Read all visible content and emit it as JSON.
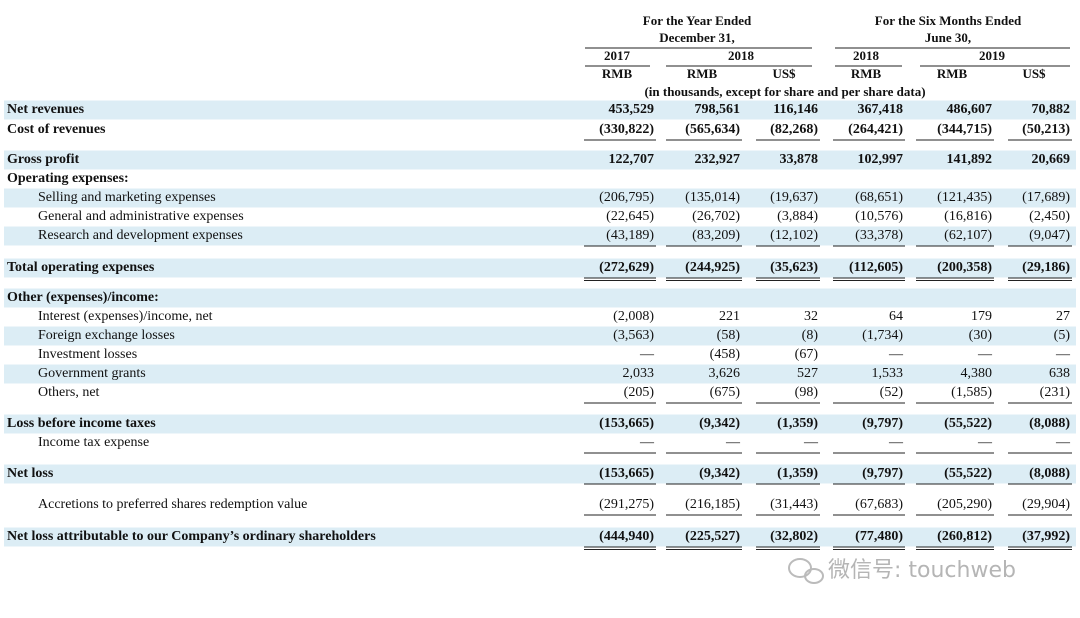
{
  "header": {
    "year_group": [
      "For the Year Ended",
      "December 31,"
    ],
    "six_group": [
      "For the Six Months Ended",
      "June 30,"
    ],
    "years": [
      "2017",
      "2018",
      "2018",
      "2019"
    ],
    "currencies": [
      "RMB",
      "RMB",
      "US$",
      "RMB",
      "RMB",
      "US$"
    ],
    "note": "(in thousands, except for share and per share data)"
  },
  "table": {
    "rows": [
      {
        "label": "Net revenues",
        "values": [
          "453,529",
          "798,561",
          "116,146",
          "367,418",
          "486,607",
          "70,882"
        ]
      },
      {
        "label": "Cost of revenues",
        "values": [
          "(330,822)",
          "(565,634)",
          "(82,268)",
          "(264,421)",
          "(344,715)",
          "(50,213)"
        ]
      },
      {
        "label": "Gross profit",
        "values": [
          "122,707",
          "232,927",
          "33,878",
          "102,997",
          "141,892",
          "20,669"
        ]
      },
      {
        "label": "Operating expenses:"
      },
      {
        "label": "Selling and marketing expenses",
        "values": [
          "(206,795)",
          "(135,014)",
          "(19,637)",
          "(68,651)",
          "(121,435)",
          "(17,689)"
        ]
      },
      {
        "label": "General and administrative expenses",
        "values": [
          "(22,645)",
          "(26,702)",
          "(3,884)",
          "(10,576)",
          "(16,816)",
          "(2,450)"
        ]
      },
      {
        "label": "Research and development expenses",
        "values": [
          "(43,189)",
          "(83,209)",
          "(12,102)",
          "(33,378)",
          "(62,107)",
          "(9,047)"
        ]
      },
      {
        "label": "Total operating expenses",
        "values": [
          "(272,629)",
          "(244,925)",
          "(35,623)",
          "(112,605)",
          "(200,358)",
          "(29,186)"
        ]
      },
      {
        "label": "Other (expenses)/income:"
      },
      {
        "label": "Interest (expenses)/income, net",
        "values": [
          "(2,008)",
          "221",
          "32",
          "64",
          "179",
          "27"
        ]
      },
      {
        "label": "Foreign exchange losses",
        "values": [
          "(3,563)",
          "(58)",
          "(8)",
          "(1,734)",
          "(30)",
          "(5)"
        ]
      },
      {
        "label": "Investment losses",
        "values": [
          "—",
          "(458)",
          "(67)",
          "—",
          "—",
          "—"
        ]
      },
      {
        "label": "Government grants",
        "values": [
          "2,033",
          "3,626",
          "527",
          "1,533",
          "4,380",
          "638"
        ]
      },
      {
        "label": "Others, net",
        "values": [
          "(205)",
          "(675)",
          "(98)",
          "(52)",
          "(1,585)",
          "(231)"
        ]
      },
      {
        "label": "Loss before income taxes",
        "values": [
          "(153,665)",
          "(9,342)",
          "(1,359)",
          "(9,797)",
          "(55,522)",
          "(8,088)"
        ]
      },
      {
        "label": "Income tax expense",
        "values": [
          "—",
          "—",
          "—",
          "—",
          "—",
          "—"
        ]
      },
      {
        "label": "Net loss",
        "values": [
          "(153,665)",
          "(9,342)",
          "(1,359)",
          "(9,797)",
          "(55,522)",
          "(8,088)"
        ]
      },
      {
        "label": "Accretions to preferred shares redemption value",
        "values": [
          "(291,275)",
          "(216,185)",
          "(31,443)",
          "(67,683)",
          "(205,290)",
          "(29,904)"
        ]
      },
      {
        "label": "Net loss attributable to our Company’s ordinary shareholders",
        "values": [
          "(444,940)",
          "(225,527)",
          "(32,802)",
          "(77,480)",
          "(260,812)",
          "(37,992)"
        ]
      }
    ]
  },
  "watermark": "微信号: touchweb"
}
